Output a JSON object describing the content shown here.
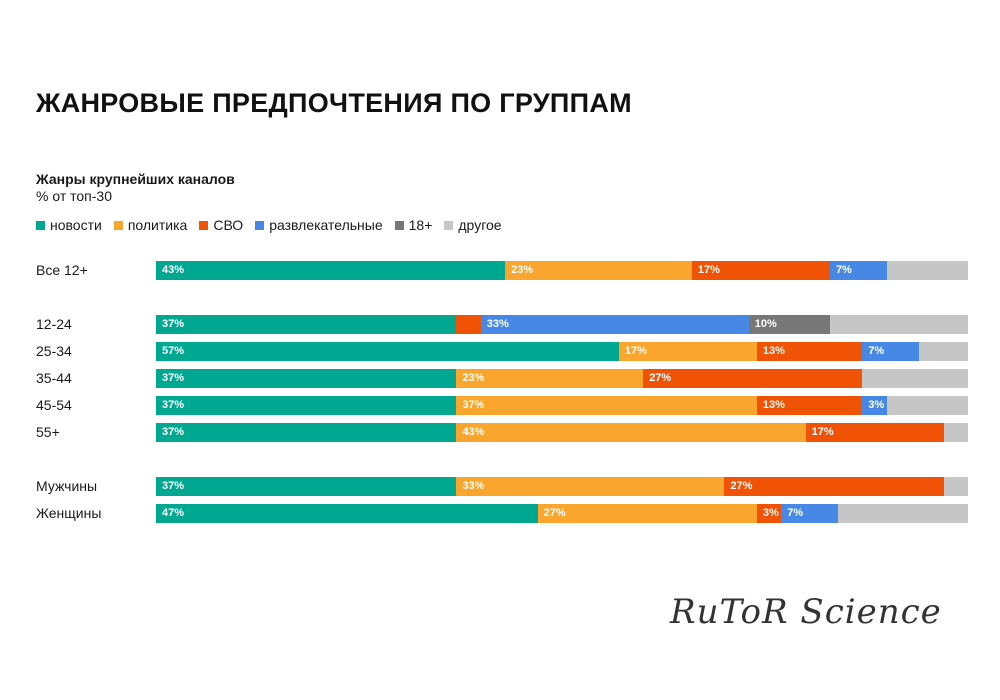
{
  "title": "ЖАНРОВЫЕ ПРЕДПОЧТЕНИЯ ПО ГРУППАМ",
  "watermark": "RuToR Science",
  "chart_data": {
    "type": "bar",
    "orientation": "horizontal",
    "stacked": true,
    "title": "Жанры крупнейших каналов",
    "subtitle": "% от топ-30",
    "xlim": [
      0,
      100
    ],
    "legend_position": "top-left",
    "series_names": [
      "новости",
      "политика",
      "СВО",
      "развлекательные",
      "18+",
      "другое"
    ],
    "colors": [
      "#00a891",
      "#f9a52e",
      "#f05305",
      "#4788e6",
      "#777777",
      "#c6c6c6"
    ],
    "categories": [
      "Все 12+",
      "12-24",
      "25-34",
      "35-44",
      "45-54",
      "55+",
      "Мужчины",
      "Женщины"
    ],
    "groups": [
      [
        0
      ],
      [
        1,
        2,
        3,
        4,
        5
      ],
      [
        6,
        7
      ]
    ],
    "series": [
      {
        "name": "новости",
        "values": [
          43,
          37,
          57,
          37,
          37,
          37,
          37,
          47
        ]
      },
      {
        "name": "политика",
        "values": [
          23,
          0,
          17,
          23,
          37,
          43,
          33,
          27
        ]
      },
      {
        "name": "СВО",
        "values": [
          17,
          3,
          13,
          27,
          13,
          17,
          27,
          3
        ]
      },
      {
        "name": "развлекательные",
        "values": [
          7,
          33,
          7,
          0,
          3,
          0,
          0,
          7
        ]
      },
      {
        "name": "18+",
        "values": [
          0,
          10,
          0,
          0,
          0,
          0,
          0,
          0
        ]
      },
      {
        "name": "другое",
        "values": [
          10,
          17,
          6,
          13,
          10,
          3,
          3,
          16
        ]
      }
    ],
    "labeled": [
      [
        true,
        true,
        true,
        true,
        false,
        false
      ],
      [
        true,
        false,
        false,
        true,
        true,
        false
      ],
      [
        true,
        true,
        true,
        true,
        false,
        false
      ],
      [
        true,
        true,
        true,
        false,
        false,
        false
      ],
      [
        true,
        true,
        true,
        true,
        false,
        false
      ],
      [
        true,
        true,
        true,
        false,
        false,
        false
      ],
      [
        true,
        true,
        true,
        false,
        false,
        false
      ],
      [
        true,
        true,
        true,
        true,
        false,
        false
      ]
    ]
  }
}
